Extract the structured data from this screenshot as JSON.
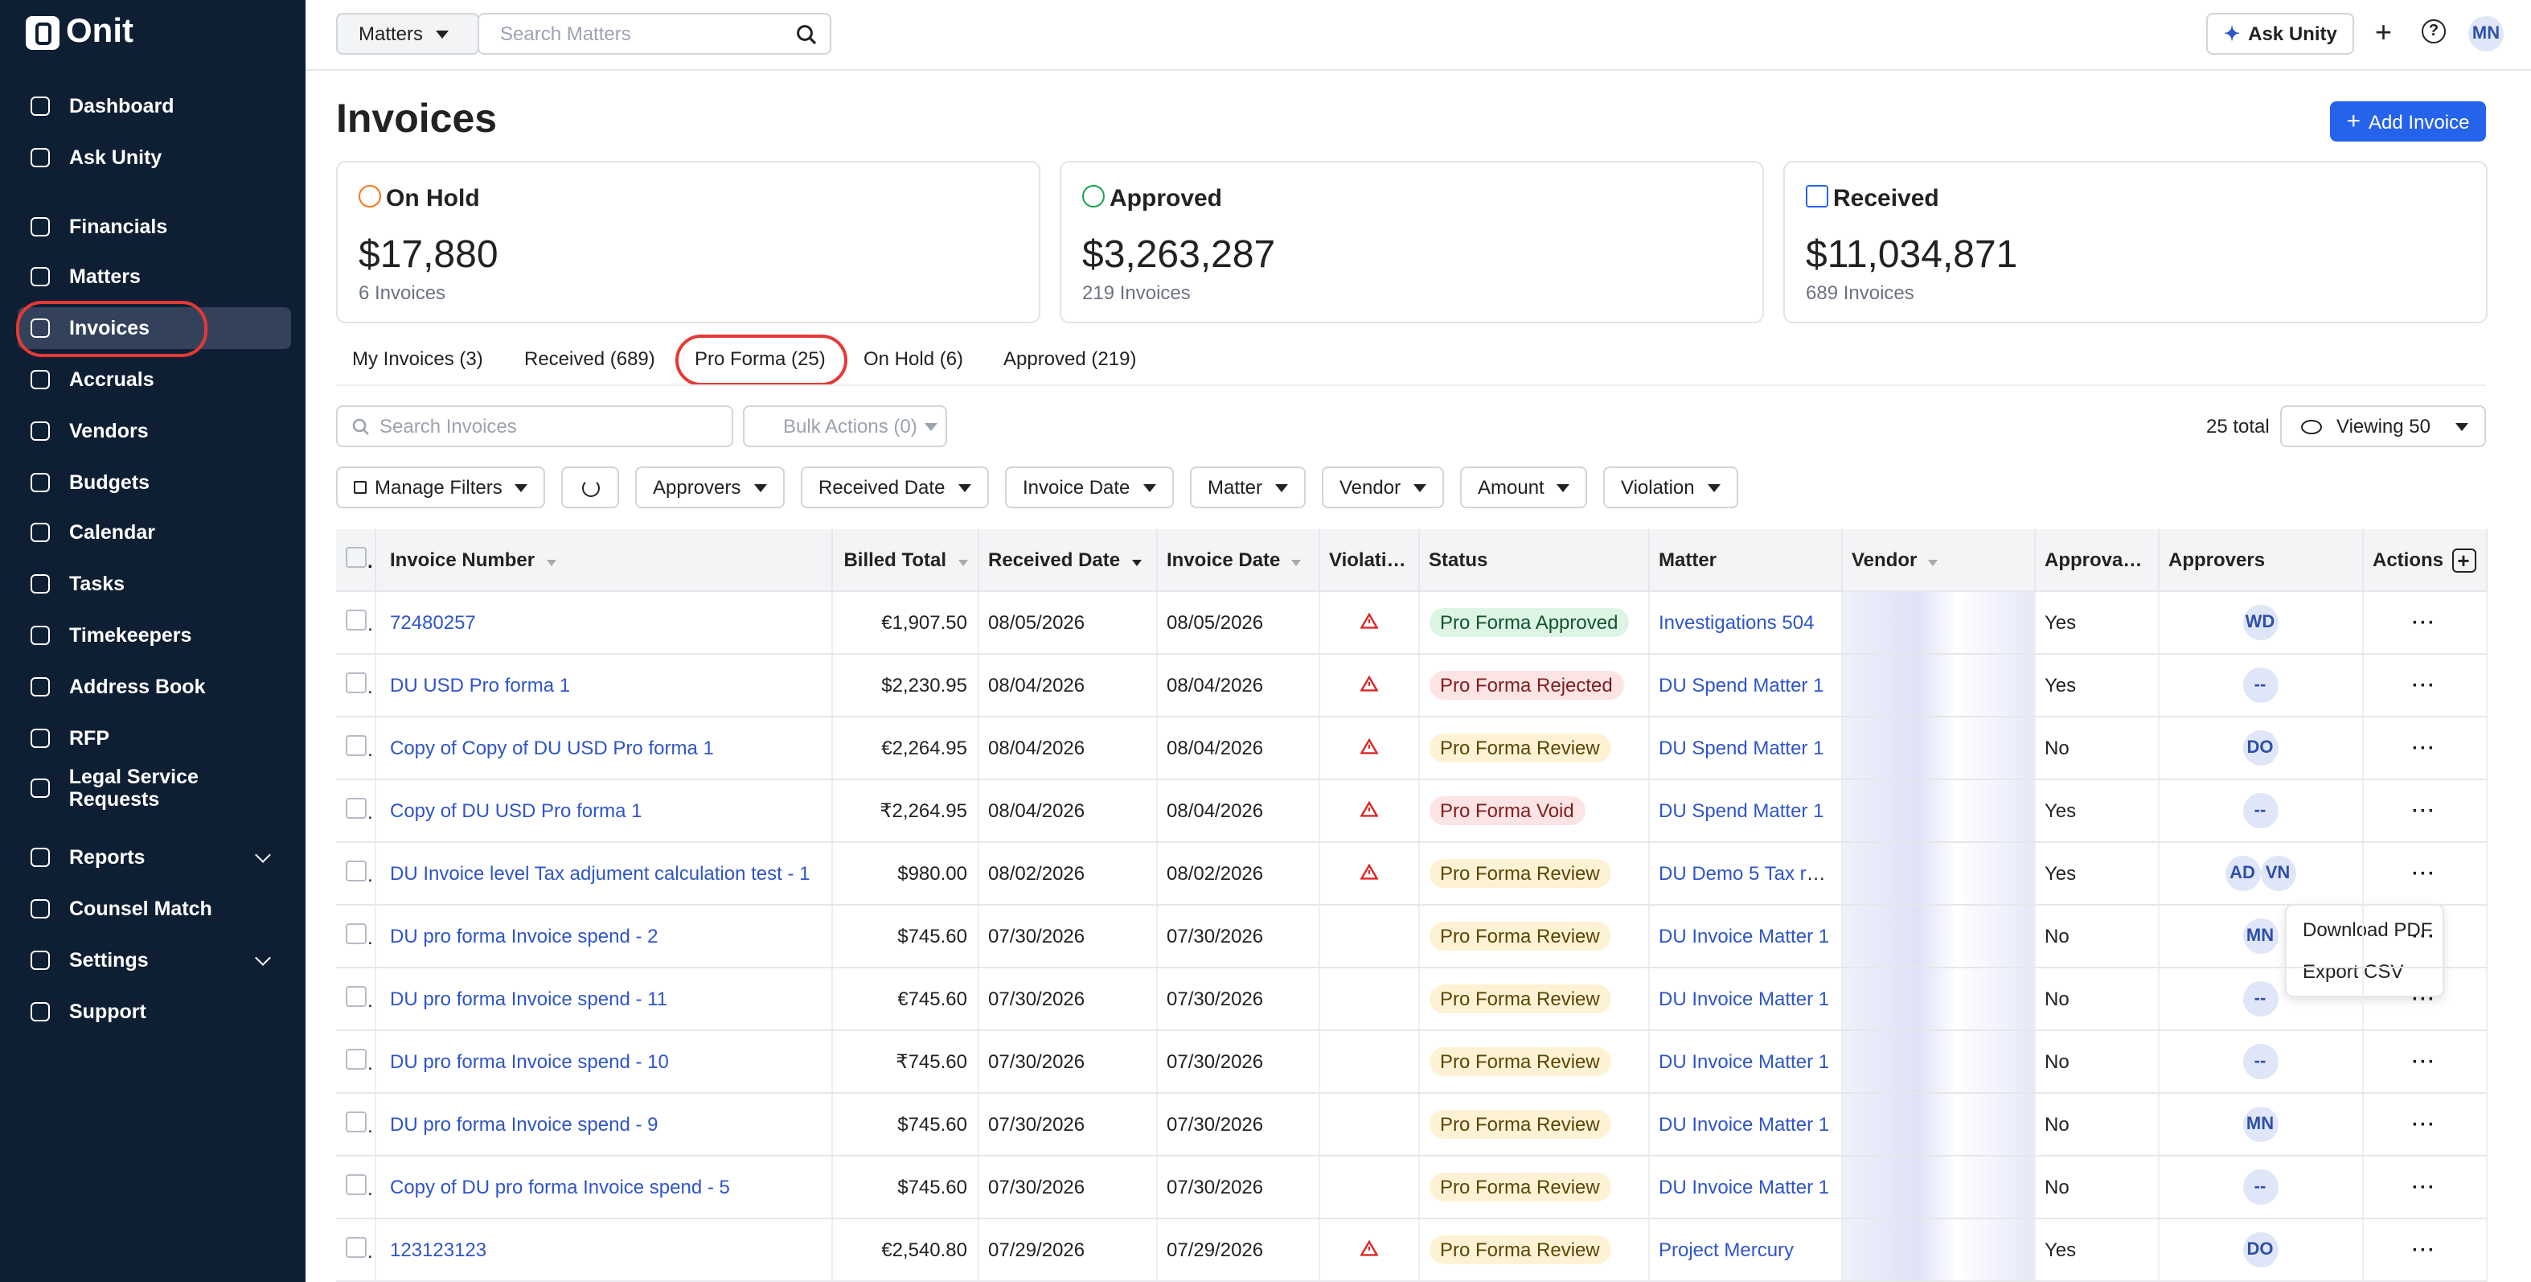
{
  "sidebar": {
    "logo": "Onit",
    "nav": [
      [
        "Dashboard",
        "Ask Unity"
      ],
      [
        "Financials",
        "Matters",
        "Invoices",
        "Accruals",
        "Vendors",
        "Budgets",
        "Calendar",
        "Tasks",
        "Timekeepers",
        "Address Book",
        "RFP",
        "Legal Service Requests"
      ],
      [
        "Reports",
        "Counsel Match",
        "Settings",
        "Support"
      ]
    ]
  },
  "topbar": {
    "scope": "Matters",
    "search_placeholder": "Search Matters",
    "ask": "Ask Unity",
    "avatar": "MN"
  },
  "header": {
    "title": "Invoices",
    "add_button": "Add Invoice"
  },
  "summary_cards": [
    {
      "title": "On Hold",
      "amount": "$17,880",
      "count": "6 Invoices"
    },
    {
      "title": "Approved",
      "amount": "$3,263,287",
      "count": "219 Invoices"
    },
    {
      "title": "Received",
      "amount": "$11,034,871",
      "count": "689 Invoices"
    }
  ],
  "tabs": [
    "My Invoices (3)",
    "Received (689)",
    "Pro Forma (25)",
    "On Hold (6)",
    "Approved (219)"
  ],
  "toolbar": {
    "search_placeholder": "Search Invoices",
    "bulk": "Bulk Actions (0)",
    "total": "25 total",
    "viewing": "Viewing 50"
  },
  "filters": [
    "Manage Filters",
    "Approvers",
    "Received Date",
    "Invoice Date",
    "Matter",
    "Vendor",
    "Amount",
    "Violation"
  ],
  "table": {
    "columns": [
      "Invoice Number",
      "Billed Total",
      "Received Date",
      "Invoice Date",
      "Violation",
      "Status",
      "Matter",
      "Vendor",
      "Approvable",
      "Approvers",
      "Actions"
    ],
    "rows": [
      {
        "invoice_number": "72480257",
        "billed_total": "€1,907.50",
        "received_date": "08/05/2026",
        "invoice_date": "08/05/2026",
        "violation": true,
        "status": "Pro Forma Approved",
        "matter": "Investigations 504",
        "approvable": "Yes",
        "approvers": [
          "WD"
        ]
      },
      {
        "invoice_number": "DU USD Pro forma 1",
        "billed_total": "$2,230.95",
        "received_date": "08/04/2026",
        "invoice_date": "08/04/2026",
        "violation": true,
        "status": "Pro Forma Rejected",
        "matter": "DU Spend Matter 1",
        "approvable": "Yes",
        "approvers": [
          "--"
        ]
      },
      {
        "invoice_number": "Copy of Copy of DU USD Pro forma 1",
        "billed_total": "€2,264.95",
        "received_date": "08/04/2026",
        "invoice_date": "08/04/2026",
        "violation": true,
        "status": "Pro Forma Review",
        "matter": "DU Spend Matter 1",
        "approvable": "No",
        "approvers": [
          "DO"
        ]
      },
      {
        "invoice_number": "Copy of DU USD Pro forma 1",
        "billed_total": "₹2,264.95",
        "received_date": "08/04/2026",
        "invoice_date": "08/04/2026",
        "violation": true,
        "status": "Pro Forma Void",
        "matter": "DU Spend Matter 1",
        "approvable": "Yes",
        "approvers": [
          "--"
        ]
      },
      {
        "invoice_number": "DU Invoice level Tax adjument calculation test - 1",
        "billed_total": "$980.00",
        "received_date": "08/02/2026",
        "invoice_date": "08/02/2026",
        "violation": true,
        "status": "Pro Forma Review",
        "matter": "DU Demo 5 Tax re...",
        "approvable": "Yes",
        "approvers": [
          "AD",
          "VN"
        ]
      },
      {
        "invoice_number": "DU pro forma Invoice spend - 2",
        "billed_total": "$745.60",
        "received_date": "07/30/2026",
        "invoice_date": "07/30/2026",
        "violation": false,
        "status": "Pro Forma Review",
        "matter": "DU Invoice Matter 1",
        "approvable": "No",
        "approvers": [
          "MN"
        ]
      },
      {
        "invoice_number": "DU pro forma Invoice spend - 11",
        "billed_total": "€745.60",
        "received_date": "07/30/2026",
        "invoice_date": "07/30/2026",
        "violation": false,
        "status": "Pro Forma Review",
        "matter": "DU Invoice Matter 1",
        "approvable": "No",
        "approvers": [
          "--"
        ]
      },
      {
        "invoice_number": "DU pro forma Invoice spend - 10",
        "billed_total": "₹745.60",
        "received_date": "07/30/2026",
        "invoice_date": "07/30/2026",
        "violation": false,
        "status": "Pro Forma Review",
        "matter": "DU Invoice Matter 1",
        "approvable": "No",
        "approvers": [
          "--"
        ]
      },
      {
        "invoice_number": "DU pro forma Invoice spend - 9",
        "billed_total": "$745.60",
        "received_date": "07/30/2026",
        "invoice_date": "07/30/2026",
        "violation": false,
        "status": "Pro Forma Review",
        "matter": "DU Invoice Matter 1",
        "approvable": "No",
        "approvers": [
          "MN"
        ]
      },
      {
        "invoice_number": "Copy of DU pro forma Invoice spend - 5",
        "billed_total": "$745.60",
        "received_date": "07/30/2026",
        "invoice_date": "07/30/2026",
        "violation": false,
        "status": "Pro Forma Review",
        "matter": "DU Invoice Matter 1",
        "approvable": "No",
        "approvers": [
          "--"
        ]
      },
      {
        "invoice_number": "123123123",
        "billed_total": "€2,540.80",
        "received_date": "07/29/2026",
        "invoice_date": "07/29/2026",
        "violation": true,
        "status": "Pro Forma Review",
        "matter": "Project Mercury",
        "approvable": "Yes",
        "approvers": [
          "DO"
        ]
      }
    ]
  },
  "context_menu": [
    "Download PDF",
    "Export CSV"
  ]
}
